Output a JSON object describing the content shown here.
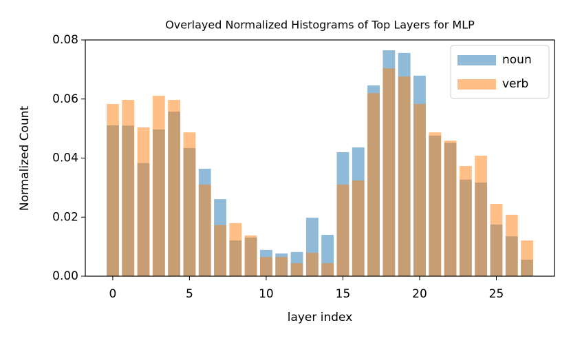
{
  "chart_data": {
    "type": "bar",
    "title": "Overlayed Normalized Histograms of Top Layers for MLP",
    "xlabel": "layer index",
    "ylabel": "Normalized Count",
    "x": [
      0,
      1,
      2,
      3,
      4,
      5,
      6,
      7,
      8,
      9,
      10,
      11,
      12,
      13,
      14,
      15,
      16,
      17,
      18,
      19,
      20,
      21,
      22,
      23,
      24,
      25,
      26,
      27
    ],
    "series": [
      {
        "name": "noun",
        "color": "#1f77b4",
        "values": [
          0.0511,
          0.051,
          0.0383,
          0.0497,
          0.0557,
          0.0434,
          0.0364,
          0.0261,
          0.0121,
          0.0131,
          0.0089,
          0.0077,
          0.0082,
          0.0198,
          0.014,
          0.042,
          0.0436,
          0.0646,
          0.0765,
          0.0756,
          0.0679,
          0.0476,
          0.0452,
          0.0327,
          0.0317,
          0.0175,
          0.0135,
          0.0056
        ]
      },
      {
        "name": "verb",
        "color": "#ff7f0e",
        "values": [
          0.0583,
          0.0597,
          0.0504,
          0.0611,
          0.0597,
          0.0487,
          0.031,
          0.0173,
          0.018,
          0.0138,
          0.0065,
          0.0065,
          0.0044,
          0.0079,
          0.0044,
          0.031,
          0.0324,
          0.062,
          0.0704,
          0.0676,
          0.0583,
          0.0487,
          0.0459,
          0.0373,
          0.0408,
          0.0245,
          0.0208,
          0.0121
        ]
      }
    ],
    "alpha": 0.5,
    "xlim": [
      -1.79,
      28.79
    ],
    "xticks": [
      0,
      5,
      10,
      15,
      20,
      25
    ],
    "ylim": [
      0,
      0.08
    ],
    "yticks": [
      {
        "value": 0,
        "label": "0.00"
      },
      {
        "value": 0.02,
        "label": "0.02"
      },
      {
        "value": 0.04,
        "label": "0.04"
      },
      {
        "value": 0.06,
        "label": "0.06"
      },
      {
        "value": 0.08,
        "label": "0.08"
      }
    ],
    "legend": "upper right"
  }
}
